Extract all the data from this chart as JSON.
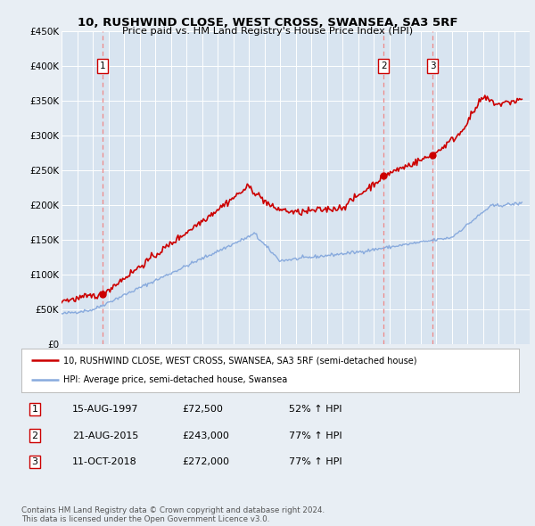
{
  "title": "10, RUSHWIND CLOSE, WEST CROSS, SWANSEA, SA3 5RF",
  "subtitle": "Price paid vs. HM Land Registry's House Price Index (HPI)",
  "ylim": [
    0,
    450000
  ],
  "yticks": [
    0,
    50000,
    100000,
    150000,
    200000,
    250000,
    300000,
    350000,
    400000,
    450000
  ],
  "ytick_labels": [
    "£0",
    "£50K",
    "£100K",
    "£150K",
    "£200K",
    "£250K",
    "£300K",
    "£350K",
    "£400K",
    "£450K"
  ],
  "xlim_start": 1995.0,
  "xlim_end": 2025.0,
  "sale_color": "#cc0000",
  "hpi_color": "#88aadd",
  "vline_color": "#ee8888",
  "sale_dates": [
    1997.62,
    2015.64,
    2018.78
  ],
  "sale_prices": [
    72500,
    243000,
    272000
  ],
  "sale_labels": [
    "1",
    "2",
    "3"
  ],
  "legend_sale_label": "10, RUSHWIND CLOSE, WEST CROSS, SWANSEA, SA3 5RF (semi-detached house)",
  "legend_hpi_label": "HPI: Average price, semi-detached house, Swansea",
  "table_rows": [
    [
      "1",
      "15-AUG-1997",
      "£72,500",
      "52% ↑ HPI"
    ],
    [
      "2",
      "21-AUG-2015",
      "£243,000",
      "77% ↑ HPI"
    ],
    [
      "3",
      "11-OCT-2018",
      "£272,000",
      "77% ↑ HPI"
    ]
  ],
  "footnote": "Contains HM Land Registry data © Crown copyright and database right 2024.\nThis data is licensed under the Open Government Licence v3.0.",
  "bg_color": "#e8eef4",
  "plot_bg_color": "#d8e4f0"
}
